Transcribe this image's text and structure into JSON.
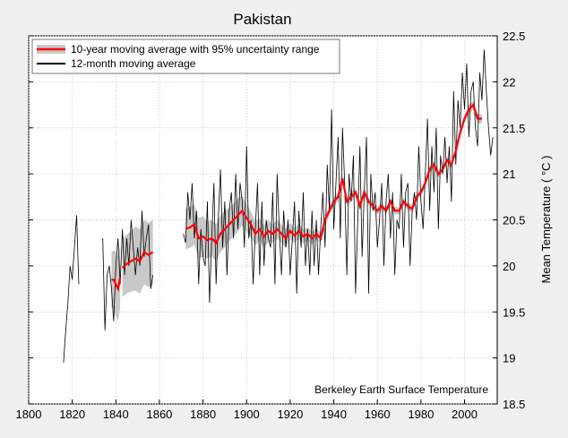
{
  "chart_data": {
    "type": "line",
    "title": "Pakistan",
    "xlabel": "",
    "ylabel": "Mean Temperature ( °C )",
    "annotation": "Berkeley Earth Surface Temperature",
    "xlim": [
      1800,
      2015
    ],
    "ylim": [
      18.5,
      22.5
    ],
    "x_ticks": [
      "1800",
      "1820",
      "1840",
      "1860",
      "1880",
      "1900",
      "1920",
      "1940",
      "1960",
      "1980",
      "2000"
    ],
    "y_ticks": [
      "18.5",
      "19",
      "19.5",
      "20",
      "20.5",
      "21",
      "21.5",
      "22",
      "22.5"
    ],
    "y_axis_side": "right",
    "grid": true,
    "legend_position": "top-left",
    "colors": {
      "moving_avg_10yr": "#ff0000",
      "uncertainty": "#c8c8c8",
      "moving_avg_12mo": "#000000",
      "background": "#f0f0f0"
    },
    "series": [
      {
        "name": "10-year moving average with 95% uncertainty range",
        "segments": [
          {
            "x": [
              1838,
              1839,
              1840,
              1841,
              1842
            ],
            "y": [
              19.85,
              19.85,
              19.8,
              19.75,
              19.88
            ],
            "unc": [
              0.3,
              0.32,
              0.35,
              0.35,
              0.33
            ]
          },
          {
            "x": [
              1843,
              1845,
              1847,
              1849,
              1851,
              1853,
              1855,
              1857
            ],
            "y": [
              19.98,
              20.02,
              20.05,
              20.08,
              20.05,
              20.15,
              20.12,
              20.15
            ],
            "unc": [
              0.32,
              0.32,
              0.33,
              0.35,
              0.35,
              0.35,
              0.35,
              0.35
            ]
          },
          {
            "x": [
              1872,
              1874,
              1876,
              1878,
              1880,
              1882,
              1884,
              1886,
              1888,
              1890,
              1892,
              1894,
              1896,
              1898,
              1900,
              1902,
              1904,
              1906,
              1908,
              1910,
              1912,
              1914,
              1916,
              1918,
              1920,
              1922,
              1924,
              1926,
              1928,
              1930,
              1932,
              1934,
              1936,
              1938,
              1940,
              1942,
              1944,
              1946,
              1948,
              1950,
              1952,
              1954,
              1956,
              1958,
              1960,
              1962,
              1964,
              1966,
              1968,
              1970,
              1972,
              1974,
              1976,
              1978,
              1980,
              1982,
              1984,
              1986,
              1988,
              1990,
              1992,
              1994,
              1996,
              1998,
              2000,
              2002,
              2004,
              2006,
              2008
            ],
            "y": [
              20.4,
              20.42,
              20.45,
              20.3,
              20.32,
              20.28,
              20.3,
              20.25,
              20.35,
              20.4,
              20.45,
              20.5,
              20.55,
              20.6,
              20.52,
              20.45,
              20.35,
              20.4,
              20.32,
              20.38,
              20.35,
              20.4,
              20.35,
              20.3,
              20.38,
              20.33,
              20.38,
              20.32,
              20.35,
              20.3,
              20.35,
              20.3,
              20.5,
              20.6,
              20.7,
              20.75,
              20.95,
              20.7,
              20.75,
              20.8,
              20.65,
              20.8,
              20.7,
              20.65,
              20.6,
              20.65,
              20.6,
              20.7,
              20.6,
              20.6,
              20.7,
              20.65,
              20.62,
              20.75,
              20.8,
              20.9,
              21.05,
              21.1,
              21.0,
              21.05,
              21.15,
              21.1,
              21.25,
              21.45,
              21.6,
              21.7,
              21.75,
              21.6,
              21.6
            ],
            "unc": [
              0.22,
              0.22,
              0.22,
              0.22,
              0.22,
              0.2,
              0.2,
              0.2,
              0.2,
              0.2,
              0.18,
              0.18,
              0.18,
              0.16,
              0.15,
              0.14,
              0.13,
              0.12,
              0.12,
              0.12,
              0.1,
              0.1,
              0.1,
              0.1,
              0.09,
              0.08,
              0.08,
              0.08,
              0.07,
              0.07,
              0.06,
              0.06,
              0.06,
              0.05,
              0.05,
              0.05,
              0.05,
              0.05,
              0.05,
              0.05,
              0.05,
              0.05,
              0.04,
              0.04,
              0.04,
              0.04,
              0.04,
              0.04,
              0.04,
              0.04,
              0.04,
              0.04,
              0.04,
              0.04,
              0.04,
              0.04,
              0.04,
              0.04,
              0.04,
              0.04,
              0.04,
              0.04,
              0.04,
              0.05,
              0.05,
              0.05,
              0.05,
              0.05,
              0.05
            ]
          }
        ]
      },
      {
        "name": "12-month moving average",
        "segments": [
          {
            "x0": 1816,
            "y": [
              18.95,
              19.3,
              19.6,
              20.0,
              19.85,
              20.2,
              20.55,
              19.8
            ]
          },
          {
            "x0": 1834,
            "y": [
              20.3,
              19.3,
              19.9,
              20.0,
              19.75,
              19.4,
              20.0,
              20.3,
              19.8,
              20.4,
              19.9,
              20.3,
              20.0,
              20.5,
              20.2,
              19.9,
              20.2,
              20.0,
              20.6,
              20.1,
              20.3,
              20.45,
              19.75,
              19.9
            ]
          },
          {
            "x0": 1871,
            "y": [
              20.35,
              20.25,
              20.8,
              20.5,
              20.9,
              20.3,
              20.6,
              19.8,
              20.4,
              20.1,
              20.0,
              20.7,
              19.6,
              20.3,
              20.9,
              19.8,
              20.5,
              21.05,
              20.2,
              20.7,
              19.9,
              20.6,
              20.8,
              20.3,
              21.0,
              20.4,
              20.9,
              20.7,
              20.2,
              21.3,
              20.3,
              20.5,
              19.8,
              20.4,
              20.9,
              19.9,
              20.7,
              20.0,
              20.5,
              20.3,
              20.2,
              20.8,
              19.8,
              21.0,
              20.4,
              19.9,
              20.6,
              20.2,
              20.5,
              19.9,
              20.3,
              20.7,
              19.7,
              20.6,
              20.2,
              20.8,
              20.0,
              20.4,
              19.9,
              20.6,
              20.0,
              20.5,
              19.9,
              20.4,
              20.8,
              20.2,
              21.1,
              20.6,
              21.7,
              20.4,
              20.9,
              21.4,
              20.3,
              21.5,
              20.9,
              19.9,
              21.0,
              20.7,
              21.2,
              19.7,
              20.5,
              21.3,
              20.1,
              20.8,
              21.4,
              19.7,
              21.0,
              20.6,
              20.8,
              20.2,
              20.5,
              20.9,
              20.0,
              20.7,
              21.0,
              20.3,
              20.8,
              19.9,
              20.5,
              20.4,
              21.0,
              20.2,
              20.8,
              20.9,
              20.0,
              20.6,
              20.8,
              20.5,
              21.3,
              20.7,
              20.4,
              21.0,
              21.6,
              20.6,
              21.3,
              20.8,
              21.5,
              20.4,
              21.2,
              21.0,
              21.4,
              20.9,
              21.3,
              20.7,
              21.9,
              21.1,
              21.8,
              21.5,
              22.1,
              21.7,
              22.2,
              21.4,
              21.9,
              22.0,
              21.5,
              21.3,
              22.1,
              21.8,
              22.35,
              21.9,
              21.5,
              21.2,
              21.4
            ]
          }
        ]
      }
    ]
  }
}
